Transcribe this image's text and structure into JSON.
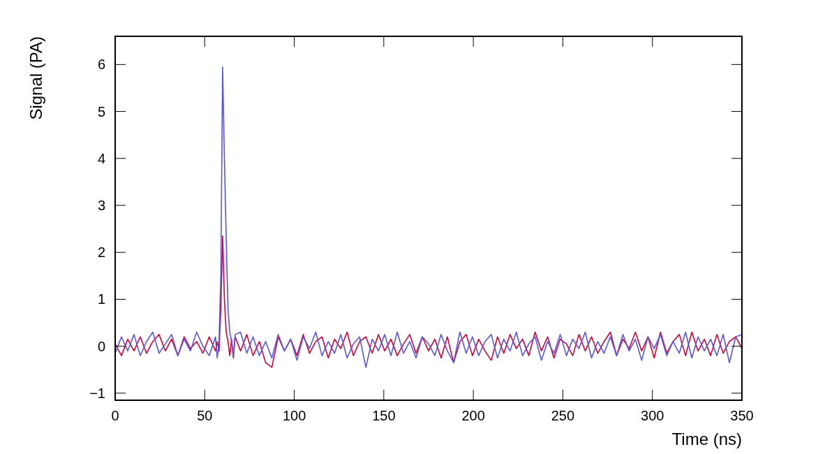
{
  "chart_data": {
    "type": "line",
    "xlabel": "Time (ns)",
    "ylabel": "Signal (PA)",
    "x": [
      0,
      3.5,
      7,
      10.5,
      14,
      17.5,
      21,
      24.5,
      28,
      31.5,
      35,
      38.5,
      42,
      45.5,
      49,
      52.5,
      56,
      57,
      58,
      59,
      60,
      61,
      62,
      63,
      64,
      65,
      66,
      67,
      70,
      73.5,
      77,
      80.5,
      84,
      87.5,
      91,
      94.5,
      98,
      101.5,
      105,
      108.5,
      112,
      115.5,
      119,
      122.5,
      126,
      129.5,
      133,
      136.5,
      140,
      143.5,
      147,
      150.5,
      154,
      157.5,
      161,
      164.5,
      168,
      171.5,
      175,
      178.5,
      182,
      185.5,
      189,
      192.5,
      196,
      199.5,
      203,
      206.5,
      210,
      213.5,
      217,
      220.5,
      224,
      227.5,
      231,
      234.5,
      238,
      241.5,
      245,
      248.5,
      252,
      255.5,
      259,
      262.5,
      266,
      269.5,
      273,
      276.5,
      280,
      283.5,
      287,
      290.5,
      294,
      297.5,
      301,
      304.5,
      308,
      311.5,
      315,
      318.5,
      322,
      325.5,
      329,
      332.5,
      336,
      339.5,
      343,
      346.5,
      350
    ],
    "series": [
      {
        "color": "#5555e6",
        "values": [
          -0.15,
          0.2,
          -0.1,
          0.25,
          -0.2,
          0.1,
          0.3,
          -0.15,
          0.05,
          0.25,
          -0.2,
          0.15,
          -0.1,
          0.3,
          0.0,
          -0.2,
          0.2,
          -0.25,
          0.1,
          1.5,
          5.95,
          4.0,
          2.3,
          0.8,
          0.3,
          0.1,
          -0.2,
          0.25,
          0.3,
          -0.15,
          0.2,
          -0.2,
          0.1,
          -0.25,
          0.25,
          -0.1,
          0.15,
          -0.3,
          0.2,
          -0.05,
          0.3,
          -0.2,
          0.1,
          -0.15,
          0.25,
          -0.25,
          0.05,
          0.2,
          -0.45,
          0.15,
          -0.1,
          0.25,
          -0.2,
          0.3,
          -0.15,
          0.1,
          -0.25,
          0.2,
          0.05,
          -0.2,
          0.25,
          -0.1,
          -0.35,
          0.3,
          -0.15,
          0.2,
          -0.2,
          0.1,
          0.25,
          -0.25,
          0.15,
          -0.1,
          0.3,
          -0.2,
          0.05,
          0.2,
          -0.3,
          0.1,
          -0.15,
          0.25,
          -0.2,
          0.15,
          -0.05,
          0.3,
          -0.25,
          0.1,
          -0.15,
          0.2,
          -0.2,
          0.25,
          -0.1,
          0.15,
          -0.3,
          0.2,
          -0.05,
          0.25,
          -0.2,
          0.1,
          -0.15,
          0.3,
          -0.25,
          0.2,
          -0.1,
          0.15,
          -0.2,
          0.25,
          -0.35,
          0.2,
          0.25
        ]
      },
      {
        "color": "#d40038",
        "values": [
          0.05,
          -0.2,
          0.15,
          -0.1,
          0.2,
          -0.15,
          0.1,
          0.25,
          -0.1,
          0.15,
          -0.2,
          0.2,
          -0.05,
          0.1,
          -0.15,
          0.2,
          -0.1,
          0.1,
          -0.1,
          0.8,
          2.35,
          1.0,
          0.3,
          0.1,
          -0.2,
          0.15,
          -0.25,
          0.2,
          -0.1,
          0.25,
          -0.2,
          0.1,
          -0.35,
          -0.45,
          0.2,
          -0.1,
          0.15,
          -0.2,
          0.25,
          -0.15,
          0.1,
          0.2,
          -0.25,
          0.15,
          -0.05,
          0.3,
          -0.2,
          0.1,
          0.2,
          -0.15,
          0.25,
          -0.1,
          0.15,
          -0.2,
          0.05,
          0.25,
          -0.15,
          0.2,
          -0.1,
          0.15,
          -0.25,
          0.2,
          -0.35,
          0.1,
          0.25,
          -0.2,
          0.15,
          -0.1,
          -0.3,
          0.2,
          -0.15,
          0.25,
          -0.05,
          0.15,
          -0.2,
          0.3,
          -0.1,
          0.2,
          -0.25,
          0.15,
          0.05,
          -0.2,
          0.25,
          -0.1,
          0.2,
          -0.15,
          0.1,
          0.3,
          -0.2,
          0.15,
          -0.05,
          0.3,
          -0.1,
          0.2,
          -0.25,
          0.3,
          -0.15,
          0.1,
          0.25,
          -0.2,
          0.3,
          -0.1,
          0.15,
          -0.2,
          0.25,
          -0.15,
          0.1,
          0.2,
          -0.05
        ]
      }
    ],
    "xlim": [
      0,
      350
    ],
    "xticks": [
      0,
      50,
      100,
      150,
      200,
      250,
      300,
      350
    ],
    "ylim": [
      -1.15,
      6.6
    ],
    "yticks": [
      {
        "value": -1,
        "label": "−1"
      },
      0,
      1,
      2,
      3,
      4,
      5,
      6
    ],
    "grid": false,
    "legend": false,
    "marker": "none",
    "line_style": "solid"
  }
}
